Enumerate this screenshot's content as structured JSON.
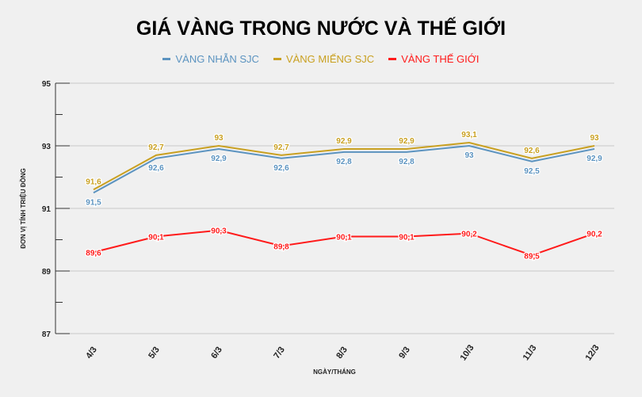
{
  "chart_data": {
    "type": "line",
    "title": "GIÁ VÀNG TRONG NƯỚC VÀ THẾ GIỚI",
    "xlabel": "NGÀY/THÁNG",
    "ylabel": "ĐƠN VỊ TÍNH TRIỆU ĐỒNG",
    "categories": [
      "4/3",
      "5/3",
      "6/3",
      "7/3",
      "8/3",
      "9/3",
      "10/3",
      "11/3",
      "12/3"
    ],
    "ylim": [
      87,
      95
    ],
    "yticks": [
      87,
      89,
      91,
      93,
      95
    ],
    "grid": true,
    "legend": "top",
    "series": [
      {
        "name": "VÀNG NHẪN SJC",
        "color": "#5b93c0",
        "values": [
          91.5,
          92.6,
          92.9,
          92.6,
          92.8,
          92.8,
          93,
          92.5,
          92.9
        ]
      },
      {
        "name": "VÀNG MIẾNG SJC",
        "color": "#c9a020",
        "values": [
          91.6,
          92.7,
          93,
          92.7,
          92.9,
          92.9,
          93.1,
          92.6,
          93
        ]
      },
      {
        "name": "VÀNG THẾ GIỚI",
        "color": "#ff1a1a",
        "values": [
          89.6,
          90.1,
          90.3,
          89.8,
          90.1,
          90.1,
          90.2,
          89.5,
          90.2
        ]
      }
    ]
  }
}
